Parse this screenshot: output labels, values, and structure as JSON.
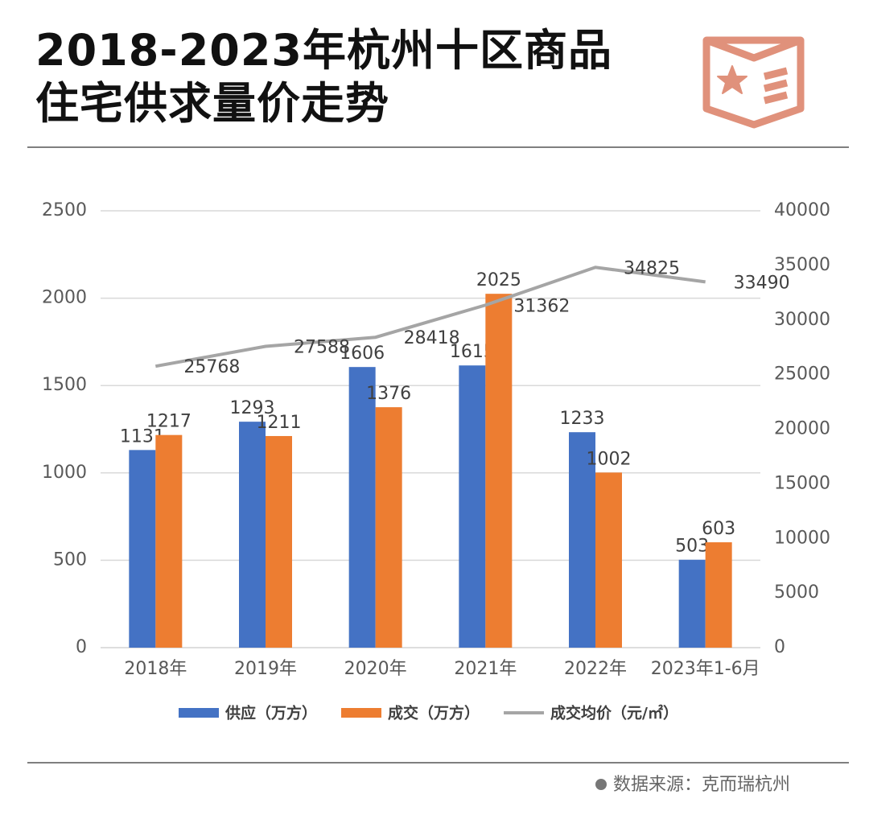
{
  "chart_data": {
    "type": "bar-line",
    "title": "2018-2023年杭州十区商品住宅供求量价走势",
    "source": "数据来源：克而瑞杭州",
    "categories": [
      "2018年",
      "2019年",
      "2020年",
      "2021年",
      "2022年",
      "2023年1-6月"
    ],
    "series": [
      {
        "name": "供应（万方）",
        "type": "bar",
        "color": "#4472c4",
        "values": [
          1131,
          1293,
          1606,
          1615,
          1233,
          503
        ]
      },
      {
        "name": "成交（万方）",
        "type": "bar",
        "color": "#ed7d31",
        "values": [
          1217,
          1211,
          1376,
          2025,
          1002,
          603
        ],
        "label_colors": [
          "#404040",
          "#404040",
          "#404040",
          "#e8141a",
          "#404040",
          "#404040"
        ]
      },
      {
        "name": "成交均价（元/㎡）",
        "type": "line",
        "axis": "y2",
        "color": "#a5a5a5",
        "values": [
          25768,
          27588,
          28418,
          31362,
          34825,
          33490
        ]
      }
    ],
    "ylim": [
      0,
      2500
    ],
    "yticks": [
      0,
      500,
      1000,
      1500,
      2000,
      2500
    ],
    "y2lim": [
      0,
      40000
    ],
    "y2ticks": [
      0,
      5000,
      10000,
      15000,
      20000,
      25000,
      30000,
      35000,
      40000
    ],
    "grid": true,
    "legend": "bottom"
  }
}
